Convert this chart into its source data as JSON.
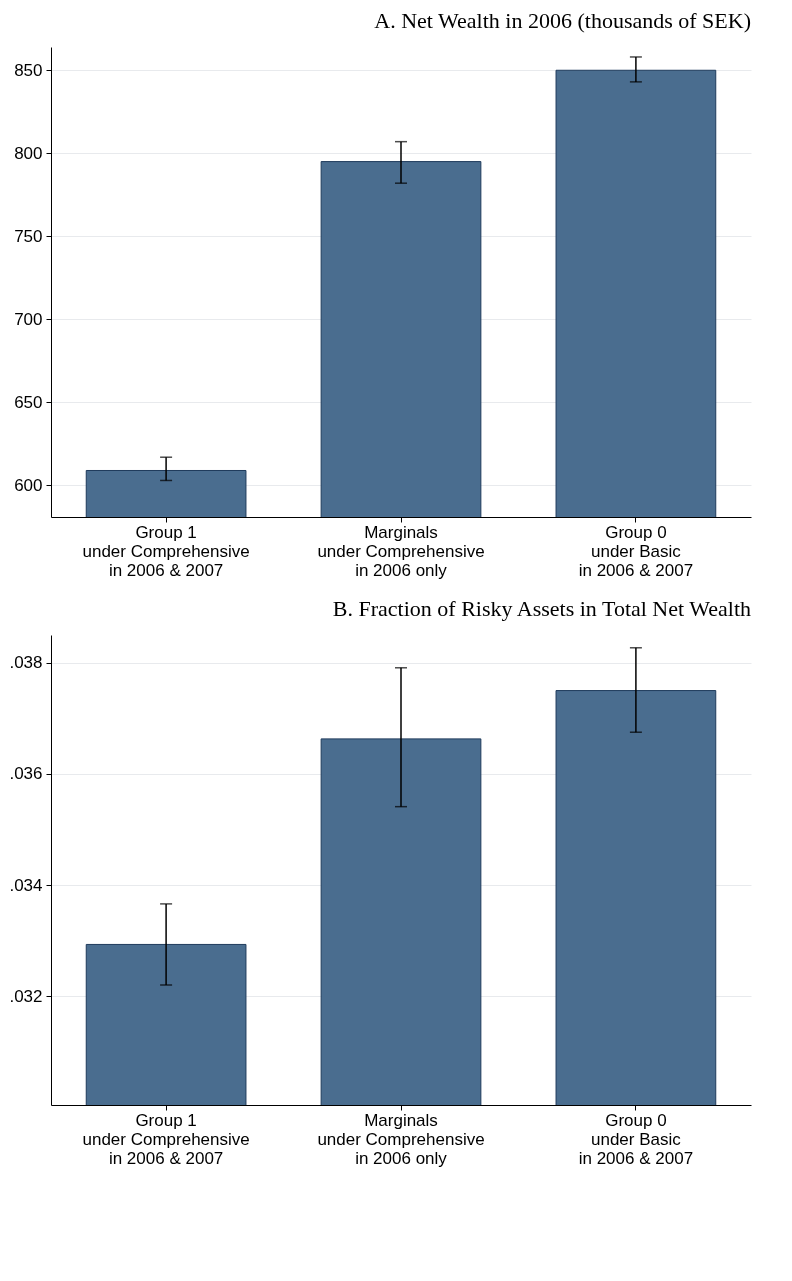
{
  "chart_data": [
    {
      "type": "bar",
      "title": "A. Net Wealth in 2006 (thousands of SEK)",
      "categories": [
        "Group 1\nunder Comprehensive\nin 2006 & 2007",
        "Marginals\nunder Comprehensive\nin 2006 only",
        "Group 0\nunder Basic\nin 2006 & 2007"
      ],
      "values": [
        609,
        795,
        850
      ],
      "errors": [
        [
          603,
          617
        ],
        [
          782,
          807
        ],
        [
          843,
          858
        ]
      ],
      "color": "#4a6d8f",
      "ylim": [
        581,
        864
      ],
      "yticks": [
        600,
        650,
        700,
        750,
        800,
        850
      ],
      "grid": "y"
    },
    {
      "type": "bar",
      "title": "B. Fraction of Risky Assets in Total Net Wealth",
      "categories": [
        "Group 1\nunder Comprehensive\nin 2006 & 2007",
        "Marginals\nunder Comprehensive\nin 2006 only",
        "Group 0\nunder Basic\nin 2006 & 2007"
      ],
      "values": [
        0.03293,
        0.03663,
        0.0375
      ],
      "errors": [
        [
          0.0322,
          0.03366
        ],
        [
          0.03541,
          0.03791
        ],
        [
          0.03675,
          0.03827
        ]
      ],
      "color": "#4a6d8f",
      "ylim": [
        0.03004,
        0.0385
      ],
      "yticks": [
        {
          "value": 0.032,
          "label": ".032"
        },
        {
          "value": 0.034,
          "label": ".034"
        },
        {
          "value": 0.036,
          "label": ".036"
        },
        {
          "value": 0.038,
          "label": ".038"
        }
      ],
      "grid": "y"
    }
  ]
}
